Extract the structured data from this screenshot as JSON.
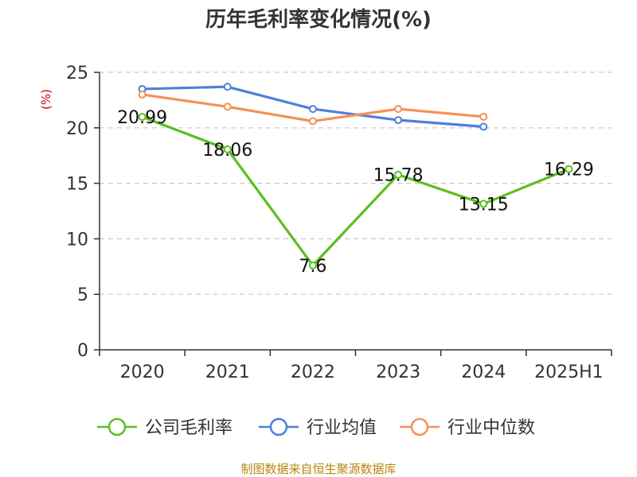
{
  "chart_data": {
    "type": "line",
    "title": "历年毛利率变化情况(%)",
    "ylabel": "(%)",
    "categories": [
      "2020",
      "2021",
      "2022",
      "2023",
      "2024",
      "2025H1"
    ],
    "ylim": [
      0,
      25
    ],
    "yticks": [
      0,
      5,
      10,
      15,
      20,
      25
    ],
    "grid": true,
    "legend_position": "bottom",
    "series": [
      {
        "name": "公司毛利率",
        "color": "#5bbf21",
        "values": [
          20.99,
          18.06,
          7.6,
          15.78,
          13.15,
          16.29
        ],
        "labels": [
          "20.99",
          "18.06",
          "7.6",
          "15.78",
          "13.15",
          "16.29"
        ]
      },
      {
        "name": "行业均值",
        "color": "#4f7fdb",
        "values": [
          23.5,
          23.7,
          21.7,
          20.7,
          20.1,
          null
        ]
      },
      {
        "name": "行业中位数",
        "color": "#f59058",
        "values": [
          23.0,
          21.9,
          20.6,
          21.7,
          21.0,
          null
        ]
      }
    ]
  },
  "footer": "制图数据来自恒生聚源数据库"
}
